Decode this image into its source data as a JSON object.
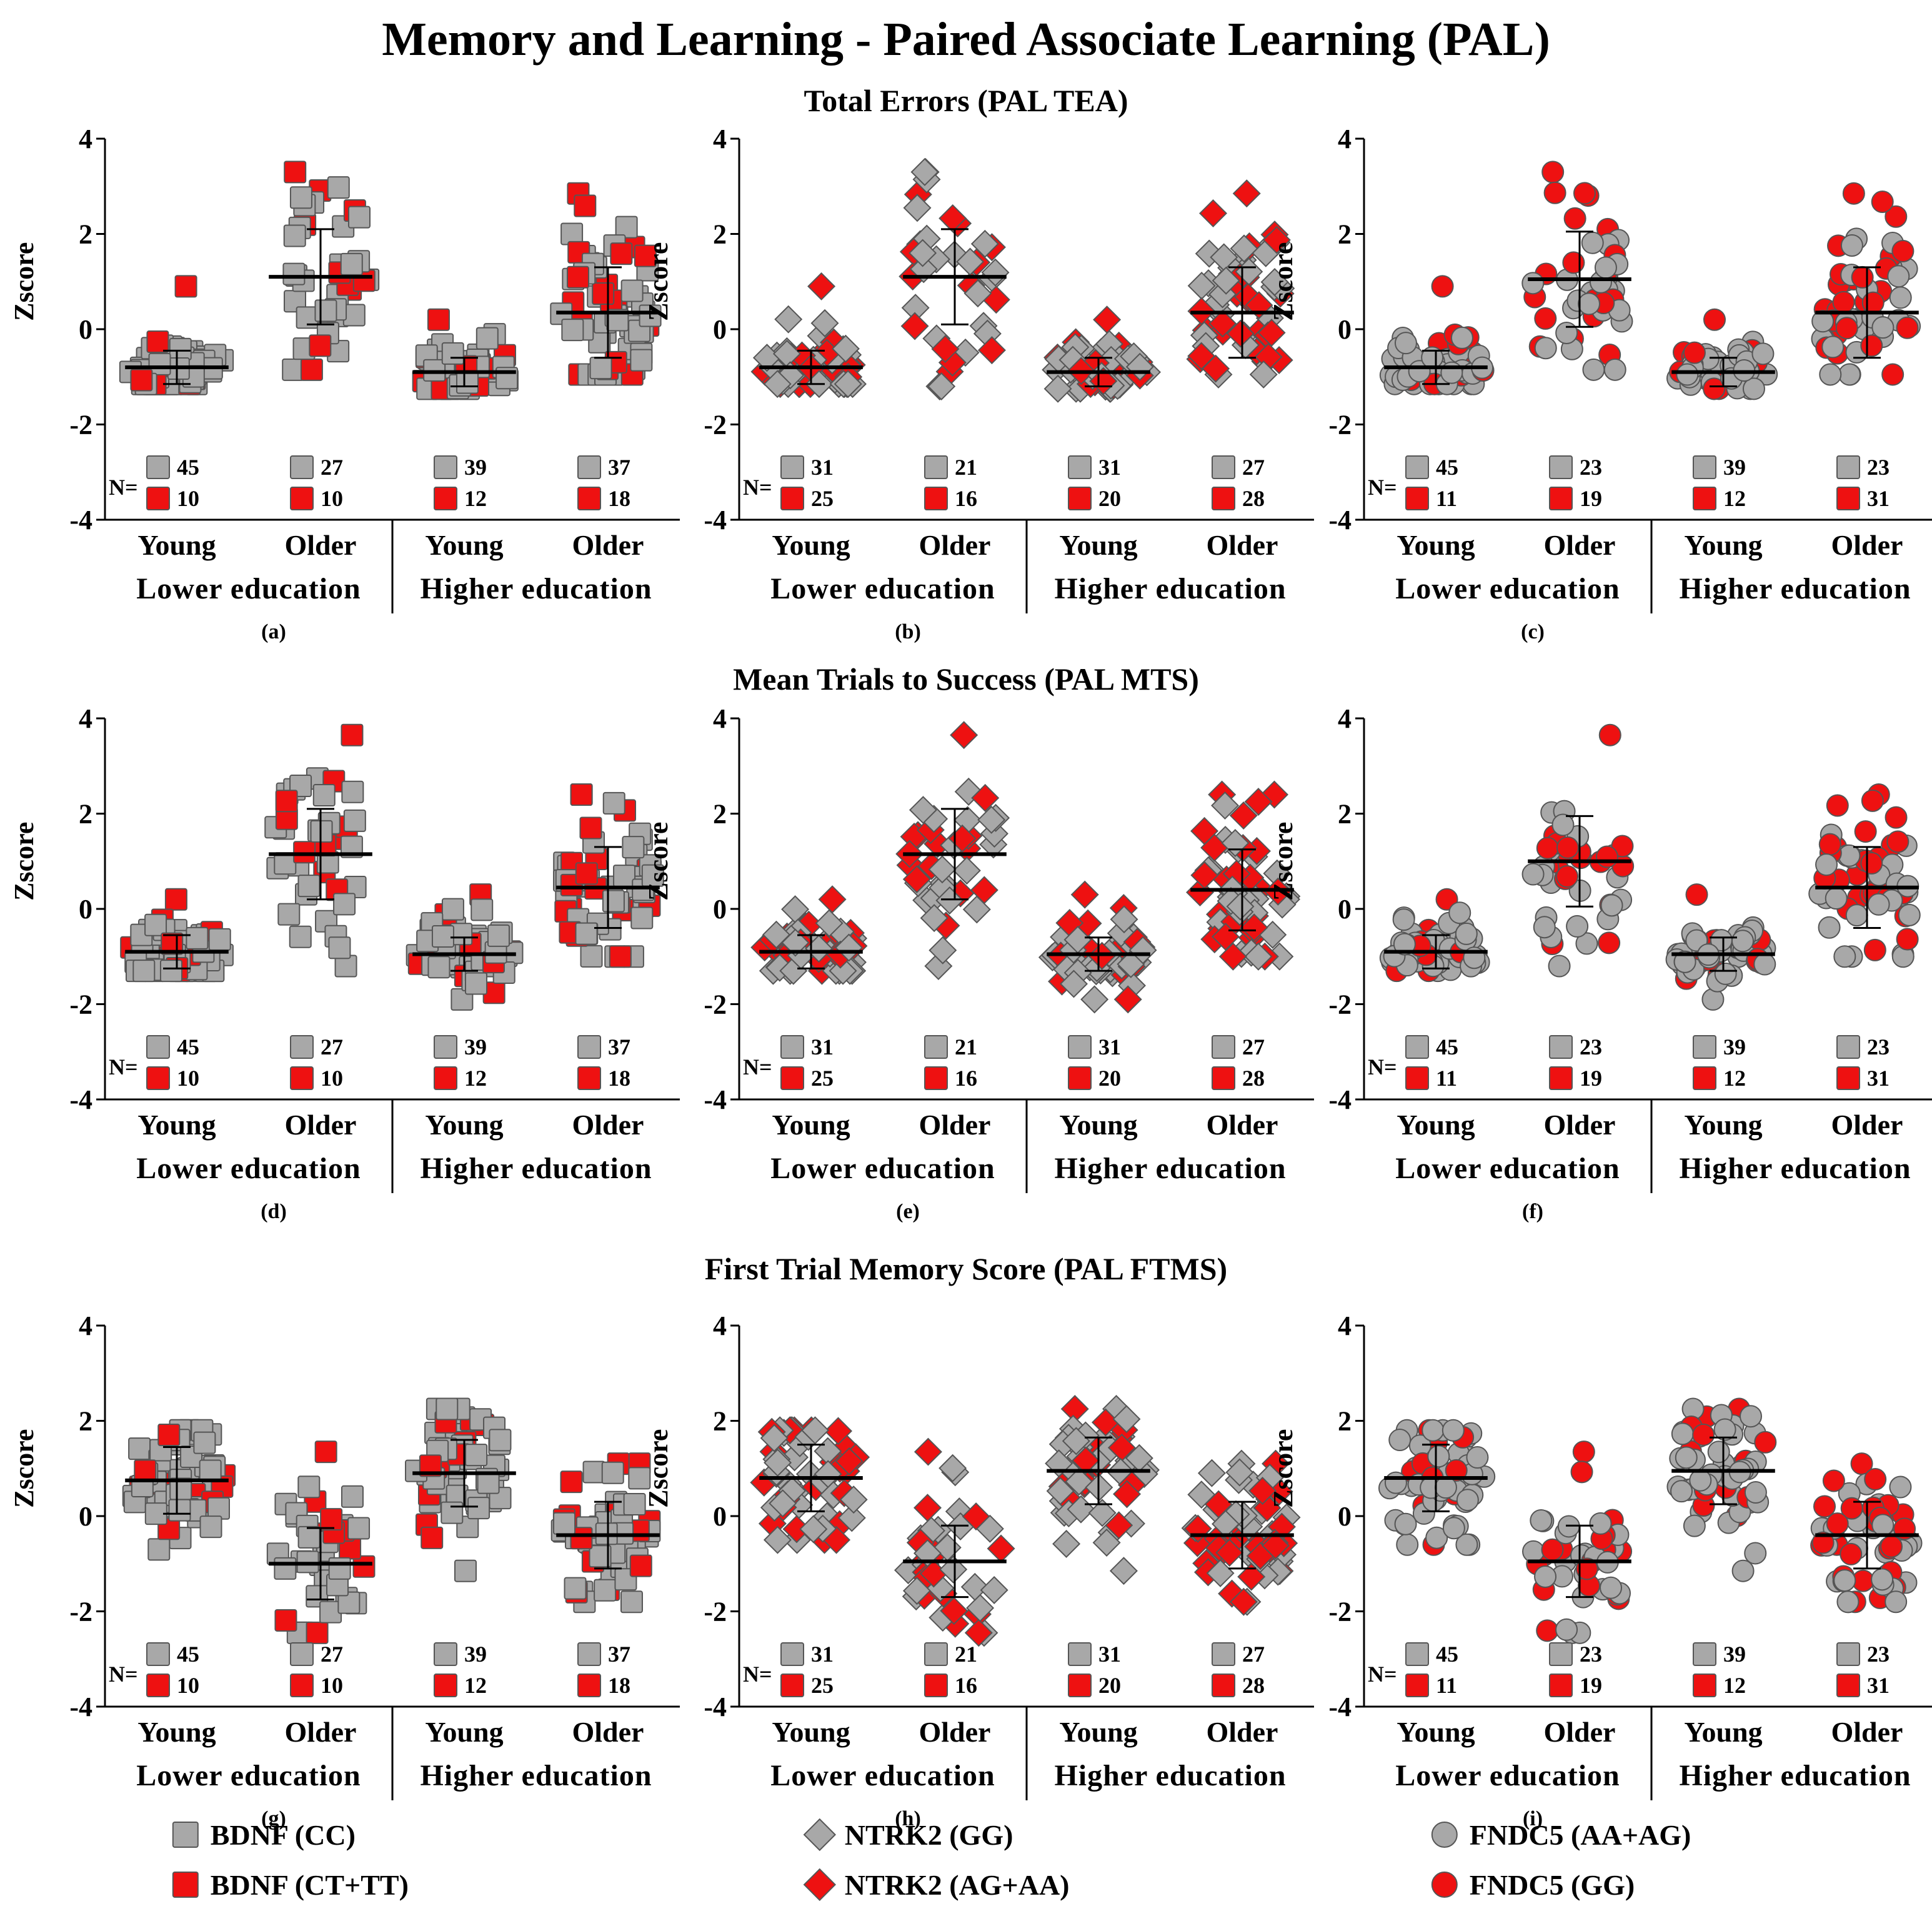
{
  "figure_title": "Memory and Learning - Paired Associate Learning (PAL)",
  "row_titles": [
    "Total Errors (PAL TEA)",
    "Mean Trials to Success (PAL MTS)",
    "First Trial Memory Score (PAL FTMS)"
  ],
  "colors": {
    "reference": "#a8a8a8",
    "carrier": "#ee1111",
    "stroke": "#555555",
    "axis": "#000000"
  },
  "n_prefix": "N=",
  "genes": [
    {
      "marker": "square",
      "legend": [
        "BDNF (CC)",
        "BDNF (CT+TT)"
      ],
      "n_reference": [
        45,
        27,
        39,
        37
      ],
      "n_carrier": [
        10,
        10,
        12,
        18
      ]
    },
    {
      "marker": "diamond",
      "legend": [
        "NTRK2 (GG)",
        "NTRK2 (AG+AA)"
      ],
      "n_reference": [
        31,
        21,
        31,
        27
      ],
      "n_carrier": [
        25,
        16,
        20,
        28
      ]
    },
    {
      "marker": "circle",
      "legend": [
        "FNDC5 (AA+AG)",
        "FNDC5 (GG)"
      ],
      "n_reference": [
        45,
        23,
        39,
        23
      ],
      "n_carrier": [
        11,
        19,
        12,
        31
      ]
    }
  ],
  "chart_data": [
    {
      "panel": "(a)",
      "type": "scatter",
      "ylabel": "Zscore",
      "ylim": [
        -4,
        4
      ],
      "yticks": [
        "4",
        "2",
        "0",
        "-2",
        "-4"
      ],
      "groups": [
        "Young",
        "Older",
        "Young",
        "Older"
      ],
      "education": [
        "Lower education",
        "Higher education"
      ],
      "series": [
        "BDNF (CC)",
        "BDNF (CT+TT)"
      ],
      "mean": [
        -0.8,
        1.1,
        -0.9,
        0.35
      ],
      "sd": [
        0.35,
        1.0,
        0.3,
        0.95
      ],
      "max": [
        0.9,
        3.3,
        0.2,
        2.85
      ],
      "min": [
        -1.15,
        -0.85,
        -1.25,
        -0.95
      ]
    },
    {
      "panel": "(b)",
      "type": "scatter",
      "ylabel": "Zscore",
      "ylim": [
        -4,
        4
      ],
      "yticks": [
        "4",
        "2",
        "0",
        "-2",
        "-4"
      ],
      "groups": [
        "Young",
        "Older",
        "Young",
        "Older"
      ],
      "education": [
        "Lower education",
        "Higher education"
      ],
      "series": [
        "NTRK2 (GG)",
        "NTRK2 (AG+AA)"
      ],
      "mean": [
        -0.8,
        1.1,
        -0.9,
        0.35
      ],
      "sd": [
        0.35,
        1.0,
        0.3,
        0.95
      ],
      "max": [
        0.9,
        3.3,
        0.2,
        2.85
      ],
      "min": [
        -1.15,
        -1.2,
        -1.25,
        -0.95
      ]
    },
    {
      "panel": "(c)",
      "type": "scatter",
      "ylabel": "Zscore",
      "ylim": [
        -4,
        4
      ],
      "yticks": [
        "4",
        "2",
        "0",
        "-2",
        "-4"
      ],
      "groups": [
        "Young",
        "Older",
        "Young",
        "Older"
      ],
      "education": [
        "Lower education",
        "Higher education"
      ],
      "series": [
        "FNDC5 (AA+AG)",
        "FNDC5 (GG)"
      ],
      "mean": [
        -0.8,
        1.05,
        -0.9,
        0.35
      ],
      "sd": [
        0.35,
        1.0,
        0.3,
        0.95
      ],
      "max": [
        0.9,
        3.3,
        0.2,
        2.85
      ],
      "min": [
        -1.15,
        -0.85,
        -1.25,
        -0.95
      ]
    },
    {
      "panel": "(d)",
      "type": "scatter",
      "ylabel": "Zscore",
      "ylim": [
        -4,
        4
      ],
      "yticks": [
        "4",
        "2",
        "0",
        "-2",
        "-4"
      ],
      "groups": [
        "Young",
        "Older",
        "Young",
        "Older"
      ],
      "education": [
        "Lower education",
        "Higher education"
      ],
      "series": [
        "BDNF (CC)",
        "BDNF (CT+TT)"
      ],
      "mean": [
        -0.9,
        1.15,
        -0.95,
        0.45
      ],
      "sd": [
        0.35,
        0.95,
        0.35,
        0.85
      ],
      "max": [
        0.2,
        3.65,
        0.3,
        2.4
      ],
      "min": [
        -1.3,
        -1.2,
        -1.9,
        -1.0
      ]
    },
    {
      "panel": "(e)",
      "type": "scatter",
      "ylabel": "Zscore",
      "ylim": [
        -4,
        4
      ],
      "yticks": [
        "4",
        "2",
        "0",
        "-2",
        "-4"
      ],
      "groups": [
        "Young",
        "Older",
        "Young",
        "Older"
      ],
      "education": [
        "Lower education",
        "Higher education"
      ],
      "series": [
        "NTRK2 (GG)",
        "NTRK2 (AG+AA)"
      ],
      "mean": [
        -0.9,
        1.15,
        -0.95,
        0.4
      ],
      "sd": [
        0.35,
        0.95,
        0.35,
        0.85
      ],
      "max": [
        0.2,
        3.65,
        0.3,
        2.4
      ],
      "min": [
        -1.3,
        -1.2,
        -1.9,
        -1.0
      ]
    },
    {
      "panel": "(f)",
      "type": "scatter",
      "ylabel": "Zscore",
      "ylim": [
        -4,
        4
      ],
      "yticks": [
        "4",
        "2",
        "0",
        "-2",
        "-4"
      ],
      "groups": [
        "Young",
        "Older",
        "Young",
        "Older"
      ],
      "education": [
        "Lower education",
        "Higher education"
      ],
      "series": [
        "FNDC5 (AA+AG)",
        "FNDC5 (GG)"
      ],
      "mean": [
        -0.9,
        1.0,
        -0.95,
        0.45
      ],
      "sd": [
        0.35,
        0.95,
        0.35,
        0.85
      ],
      "max": [
        0.2,
        3.65,
        0.3,
        2.4
      ],
      "min": [
        -1.3,
        -1.2,
        -1.9,
        -1.0
      ]
    },
    {
      "panel": "(g)",
      "type": "scatter",
      "ylabel": "Zscore",
      "ylim": [
        -4,
        4
      ],
      "yticks": [
        "4",
        "2",
        "0",
        "-2",
        "-4"
      ],
      "groups": [
        "Young",
        "Older",
        "Young",
        "Older"
      ],
      "education": [
        "Lower education",
        "Higher education"
      ],
      "series": [
        "BDNF (CC)",
        "BDNF (CT+TT)"
      ],
      "mean": [
        0.75,
        -1.0,
        0.9,
        -0.4
      ],
      "sd": [
        0.7,
        0.75,
        0.7,
        0.7
      ],
      "max": [
        1.8,
        1.35,
        2.25,
        1.1
      ],
      "min": [
        -0.7,
        -2.45,
        -1.15,
        -1.8
      ]
    },
    {
      "panel": "(h)",
      "type": "scatter",
      "ylabel": "Zscore",
      "ylim": [
        -4,
        4
      ],
      "yticks": [
        "4",
        "2",
        "0",
        "-2",
        "-4"
      ],
      "groups": [
        "Young",
        "Older",
        "Young",
        "Older"
      ],
      "education": [
        "Lower education",
        "Higher education"
      ],
      "series": [
        "NTRK2 (GG)",
        "NTRK2 (AG+AA)"
      ],
      "mean": [
        0.8,
        -0.95,
        0.95,
        -0.4
      ],
      "sd": [
        0.7,
        0.75,
        0.7,
        0.7
      ],
      "max": [
        1.8,
        1.35,
        2.25,
        1.1
      ],
      "min": [
        -0.5,
        -2.45,
        -1.15,
        -1.8
      ]
    },
    {
      "panel": "(i)",
      "type": "scatter",
      "ylabel": "Zscore",
      "ylim": [
        -4,
        4
      ],
      "yticks": [
        "4",
        "2",
        "0",
        "-2",
        "-4"
      ],
      "groups": [
        "Young",
        "Older",
        "Young",
        "Older"
      ],
      "education": [
        "Lower education",
        "Higher education"
      ],
      "series": [
        "FNDC5 (AA+AG)",
        "FNDC5 (GG)"
      ],
      "mean": [
        0.8,
        -0.95,
        0.95,
        -0.4
      ],
      "sd": [
        0.7,
        0.75,
        0.7,
        0.7
      ],
      "max": [
        1.8,
        1.35,
        2.25,
        1.1
      ],
      "min": [
        -0.6,
        -2.45,
        -1.15,
        -1.8
      ]
    }
  ]
}
